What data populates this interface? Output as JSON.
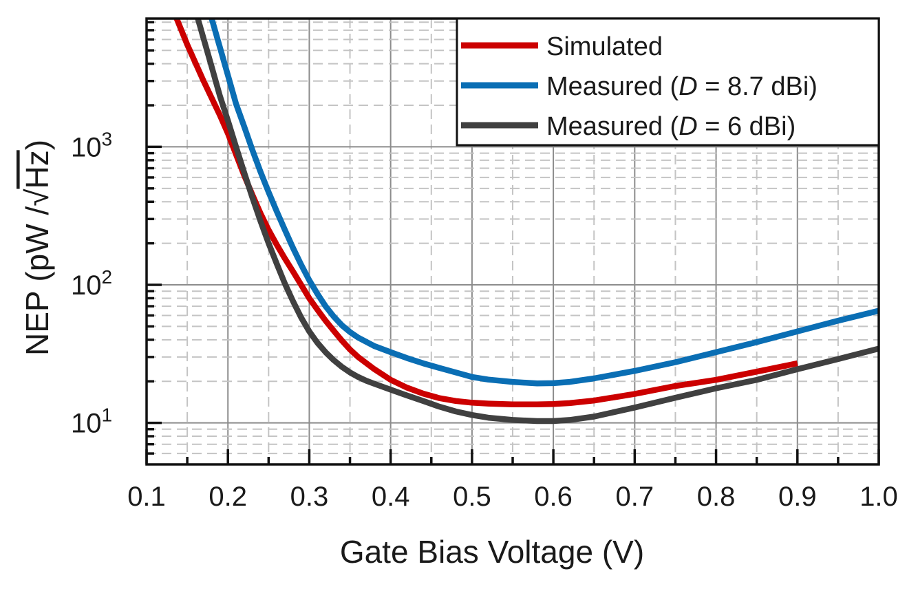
{
  "chart_data": {
    "type": "line",
    "title": "",
    "xlabel": "Gate Bias Voltage (V)",
    "ylabel_prefix": "NEP (pW /",
    "ylabel_root": "Hz",
    "ylabel_suffix": ")",
    "xlim": [
      0.1,
      1.0
    ],
    "ylim": [
      5,
      8500
    ],
    "yscale": "log",
    "grid": true,
    "legend_position": "top-right",
    "x_ticks": [
      0.1,
      0.2,
      0.3,
      0.4,
      0.5,
      0.6,
      0.7,
      0.8,
      0.9,
      1.0
    ],
    "x_tick_labels": [
      "0.1",
      "0.2",
      "0.3",
      "0.4",
      "0.5",
      "0.6",
      "0.7",
      "0.8",
      "0.9",
      "1.0"
    ],
    "y_ticks": [
      {
        "value": 10,
        "base": "10",
        "exp": "1"
      },
      {
        "value": 100,
        "base": "10",
        "exp": "2"
      },
      {
        "value": 1000,
        "base": "10",
        "exp": "3"
      }
    ],
    "series": [
      {
        "name": "Simulated",
        "label_parts": {
          "pre": "Simulated",
          "italic": "",
          "post": ""
        },
        "color": "#cc0000",
        "x": [
          0.137,
          0.15,
          0.17,
          0.19,
          0.2,
          0.21,
          0.22,
          0.23,
          0.24,
          0.25,
          0.26,
          0.27,
          0.28,
          0.29,
          0.3,
          0.31,
          0.32,
          0.33,
          0.34,
          0.35,
          0.36,
          0.38,
          0.4,
          0.42,
          0.44,
          0.46,
          0.48,
          0.5,
          0.52,
          0.55,
          0.58,
          0.6,
          0.62,
          0.65,
          0.7,
          0.75,
          0.8,
          0.85,
          0.9
        ],
        "y": [
          8500,
          5500,
          3000,
          1700,
          1250,
          880,
          620,
          450,
          330,
          250,
          195,
          155,
          125,
          100,
          80,
          66,
          55,
          46.5,
          39.5,
          34,
          30,
          24.5,
          20.5,
          18,
          16.3,
          15.1,
          14.4,
          14.0,
          13.8,
          13.6,
          13.6,
          13.7,
          13.9,
          14.5,
          16.2,
          18.5,
          20.5,
          23.5,
          27
        ]
      },
      {
        "name": "Measured (D = 8.7 dBi)",
        "label_parts": {
          "pre": "Measured (",
          "italic": "D",
          "post": " = 8.7 dBi)"
        },
        "color": "#0a6eb4",
        "x": [
          0.18,
          0.2,
          0.21,
          0.22,
          0.23,
          0.24,
          0.25,
          0.26,
          0.27,
          0.28,
          0.29,
          0.3,
          0.31,
          0.32,
          0.33,
          0.34,
          0.35,
          0.36,
          0.38,
          0.4,
          0.42,
          0.44,
          0.46,
          0.48,
          0.5,
          0.52,
          0.55,
          0.58,
          0.6,
          0.62,
          0.65,
          0.7,
          0.75,
          0.8,
          0.85,
          0.9,
          0.95,
          1.0
        ],
        "y": [
          8500,
          3300,
          2050,
          1400,
          950,
          660,
          470,
          340,
          250,
          185,
          140,
          108,
          86,
          70,
          59,
          51,
          45.5,
          41.5,
          36,
          32.5,
          29.5,
          27,
          25,
          23.2,
          21.5,
          20.6,
          19.8,
          19.3,
          19.4,
          19.8,
          21,
          23.8,
          27.5,
          32.5,
          38.5,
          46,
          55,
          65
        ]
      },
      {
        "name": "Measured (D = 6 dBi)",
        "label_parts": {
          "pre": "Measured (",
          "italic": "D",
          "post": " = 6 dBi)"
        },
        "color": "#404040",
        "x": [
          0.163,
          0.18,
          0.19,
          0.2,
          0.21,
          0.22,
          0.23,
          0.24,
          0.25,
          0.26,
          0.27,
          0.28,
          0.29,
          0.3,
          0.31,
          0.32,
          0.33,
          0.34,
          0.35,
          0.36,
          0.37,
          0.38,
          0.4,
          0.42,
          0.44,
          0.46,
          0.48,
          0.5,
          0.52,
          0.55,
          0.58,
          0.6,
          0.62,
          0.65,
          0.7,
          0.75,
          0.8,
          0.85,
          0.9,
          0.95,
          1.0
        ],
        "y": [
          8500,
          3800,
          2350,
          1550,
          1000,
          650,
          430,
          290,
          200,
          142,
          102,
          76,
          58,
          46,
          38,
          32.5,
          28.5,
          25.5,
          23.2,
          21.5,
          20.2,
          19.2,
          17.4,
          15.8,
          14.4,
          13.1,
          12.1,
          11.4,
          10.9,
          10.5,
          10.3,
          10.3,
          10.5,
          11.1,
          12.9,
          15.2,
          17.8,
          20.5,
          24.5,
          29,
          34.5
        ]
      }
    ]
  }
}
